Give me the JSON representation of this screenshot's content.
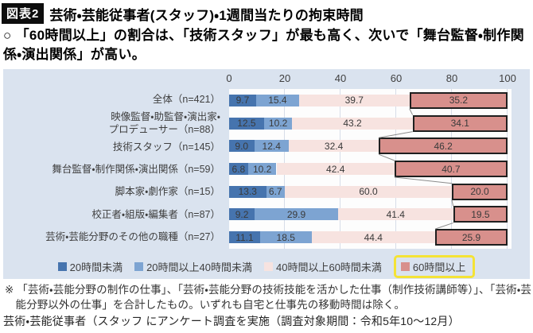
{
  "header": {
    "tag": "図表2",
    "title": "芸術・芸能従事者(スタッフ)・1週間当たりの拘束時間"
  },
  "subtitle": "○ 「60時間以上」の割合は、「技術スタッフ」が最も高く、次いで「舞台監督・制作関係・演出関係」が高い。",
  "chart_data": {
    "type": "bar",
    "orientation": "horizontal",
    "stacked": true,
    "unit": "%",
    "xlim": [
      0,
      100
    ],
    "x_ticks": [
      0,
      20,
      40,
      60,
      80,
      100
    ],
    "grid": true,
    "legend_position": "bottom",
    "categories": [
      "全体（n=421）",
      "映像監督・助監督・演出家・\nプロデューサー（n=88）",
      "技術スタッフ（n=145）",
      "舞台監督・制作関係・演出関係（n=59）",
      "脚本家・劇作家（n=15）",
      "校正者・組版・編集者（n=87）",
      "芸術・芸能分野のその他の職種（n=27）"
    ],
    "series": [
      {
        "name": "20時間未満",
        "color": "#4674ae",
        "values": [
          9.7,
          12.5,
          9.0,
          6.8,
          13.3,
          9.2,
          11.1
        ]
      },
      {
        "name": "20時間以上40時間未満",
        "color": "#7da4d2",
        "values": [
          15.4,
          10.2,
          12.4,
          10.2,
          6.7,
          29.9,
          18.5
        ]
      },
      {
        "name": "40時間以上60時間未満",
        "color": "#f7e3e0",
        "values": [
          39.7,
          43.2,
          32.4,
          42.4,
          60.0,
          41.4,
          44.4
        ]
      },
      {
        "name": "60時間以上",
        "color": "#d8908c",
        "values": [
          35.2,
          34.1,
          46.2,
          40.7,
          20.0,
          19.5,
          25.9
        ],
        "highlighted": true
      }
    ],
    "highlighted_series": "60時間以上",
    "highlight_outline_color": "#1f1f1f",
    "legend_highlight_box_color": "#f4e336"
  },
  "footnote": "※ 「芸術・芸能分野の制作の仕事」、「芸術・芸能分野の技術技能を活かした仕事（制作技術講師等）」、「芸術・芸能分野以外の仕事」を合計したもの。いずれも自宅と仕事先の移動時間は除く。",
  "source_note": "芸術・芸能従事者（スタッフ にアンケート調査を実施（調査対象期間：令和5年10～12月）",
  "colors": {
    "figure_background": "#dae3ef",
    "plot_background": "#fdfdfd",
    "gridline": "#d7dde8",
    "connector_line": "#8c8c8c",
    "value_text": "#3a3a3a",
    "tag_background": "#0d0d0d"
  }
}
